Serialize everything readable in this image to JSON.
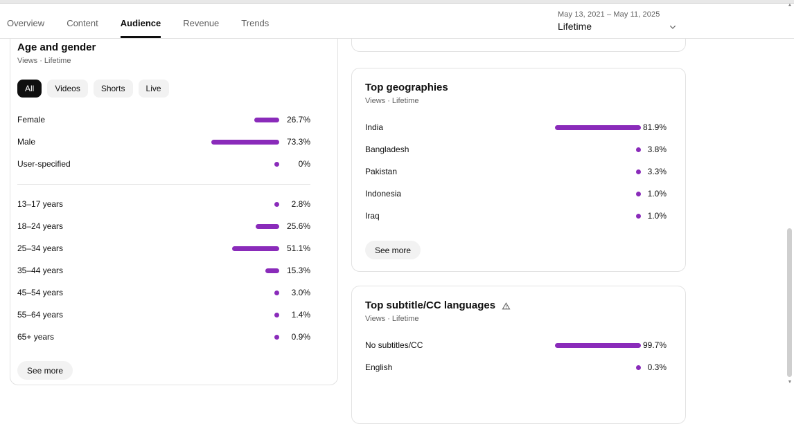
{
  "colors": {
    "accent": "#8a2bba"
  },
  "tabs": [
    {
      "label": "Overview"
    },
    {
      "label": "Content"
    },
    {
      "label": "Audience",
      "active": true
    },
    {
      "label": "Revenue"
    },
    {
      "label": "Trends"
    }
  ],
  "date_picker": {
    "range": "May 13, 2021 – May 11, 2025",
    "preset": "Lifetime",
    "icon": "chevron-down"
  },
  "age_gender_card": {
    "title": "Age and gender",
    "subtitle": "Views · Lifetime",
    "filters": [
      "All",
      "Videos",
      "Shorts",
      "Live"
    ],
    "gender_rows": [
      {
        "label": "Female",
        "pct": 26.7,
        "value": "26.7%"
      },
      {
        "label": "Male",
        "pct": 73.3,
        "value": "73.3%"
      },
      {
        "label": "User-specified",
        "pct": 0,
        "value": "0%"
      }
    ],
    "age_rows": [
      {
        "label": "13–17 years",
        "pct": 2.8,
        "value": "2.8%"
      },
      {
        "label": "18–24 years",
        "pct": 25.6,
        "value": "25.6%"
      },
      {
        "label": "25–34 years",
        "pct": 51.1,
        "value": "51.1%"
      },
      {
        "label": "35–44 years",
        "pct": 15.3,
        "value": "15.3%"
      },
      {
        "label": "45–54 years",
        "pct": 3.0,
        "value": "3.0%"
      },
      {
        "label": "55–64 years",
        "pct": 1.4,
        "value": "1.4%"
      },
      {
        "label": "65+ years",
        "pct": 0.9,
        "value": "0.9%"
      }
    ],
    "see_more_label": "See more"
  },
  "geographies_card": {
    "title": "Top geographies",
    "subtitle": "Views · Lifetime",
    "rows": [
      {
        "label": "India",
        "pct": 81.9,
        "value": "81.9%"
      },
      {
        "label": "Bangladesh",
        "pct": 3.8,
        "value": "3.8%"
      },
      {
        "label": "Pakistan",
        "pct": 3.3,
        "value": "3.3%"
      },
      {
        "label": "Indonesia",
        "pct": 1.0,
        "value": "1.0%"
      },
      {
        "label": "Iraq",
        "pct": 1.0,
        "value": "1.0%"
      }
    ],
    "see_more_label": "See more"
  },
  "subtitles_card": {
    "title": "Top subtitle/CC languages",
    "subtitle": "Views · Lifetime",
    "icon": "warning-triangle",
    "rows": [
      {
        "label": "No subtitles/CC",
        "pct": 99.7,
        "value": "99.7%"
      },
      {
        "label": "English",
        "pct": 0.3,
        "value": "0.3%"
      }
    ]
  },
  "scrollbar": {
    "up_icon": "arrow-up",
    "down_icon": "arrow-down"
  }
}
